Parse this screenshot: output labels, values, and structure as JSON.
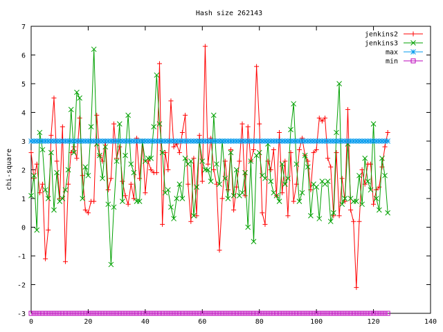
{
  "chart_data": {
    "type": "line",
    "title": "Hash size 262143",
    "xlabel": "",
    "ylabel": "chi-square",
    "xlim": [
      0,
      140
    ],
    "ylim": [
      -3,
      7
    ],
    "xticks": [
      0,
      20,
      40,
      60,
      80,
      100,
      120,
      140
    ],
    "yticks": [
      -3,
      -2,
      -1,
      0,
      1,
      2,
      3,
      4,
      5,
      6,
      7
    ],
    "grid": false,
    "legend_position": "top-right",
    "x": [
      0,
      1,
      2,
      3,
      4,
      5,
      6,
      7,
      8,
      9,
      10,
      11,
      12,
      13,
      14,
      15,
      16,
      17,
      18,
      19,
      20,
      21,
      22,
      23,
      24,
      25,
      26,
      27,
      28,
      29,
      30,
      31,
      32,
      33,
      34,
      35,
      36,
      37,
      38,
      39,
      40,
      41,
      42,
      43,
      44,
      45,
      46,
      47,
      48,
      49,
      50,
      51,
      52,
      53,
      54,
      55,
      56,
      57,
      58,
      59,
      60,
      61,
      62,
      63,
      64,
      65,
      66,
      67,
      68,
      69,
      70,
      71,
      72,
      73,
      74,
      75,
      76,
      77,
      78,
      79,
      80,
      81,
      82,
      83,
      84,
      85,
      86,
      87,
      88,
      89,
      90,
      91,
      92,
      93,
      94,
      95,
      96,
      97,
      98,
      99,
      100,
      101,
      102,
      103,
      104,
      105,
      106,
      107,
      108,
      109,
      110,
      111,
      112,
      113,
      114,
      115,
      116,
      117,
      118,
      119,
      120,
      121,
      122,
      123,
      124,
      125
    ],
    "series": [
      {
        "name": "jenkins2",
        "color": "#ff0000",
        "marker": "plus",
        "values": [
          2.6,
          1.7,
          2.2,
          1.2,
          1.5,
          -1.1,
          -0.1,
          3.2,
          4.5,
          2.3,
          1.0,
          3.5,
          -1.2,
          1.5,
          2.6,
          2.8,
          2.4,
          3.8,
          1.8,
          0.6,
          0.5,
          0.9,
          0.9,
          3.9,
          2.5,
          2.3,
          3.0,
          1.3,
          1.7,
          3.6,
          2.4,
          2.8,
          1.6,
          1.1,
          0.8,
          1.5,
          1.0,
          3.1,
          1.7,
          3.0,
          1.2,
          2.3,
          2.0,
          1.9,
          1.9,
          5.7,
          0.1,
          2.6,
          2.0,
          4.4,
          2.8,
          2.9,
          2.6,
          3.3,
          3.9,
          1.5,
          0.2,
          2.4,
          0.4,
          3.2,
          1.6,
          6.3,
          2.2,
          3.1,
          2.0,
          1.5,
          -0.8,
          1.0,
          2.3,
          1.3,
          2.7,
          0.6,
          1.4,
          2.3,
          3.6,
          1.1,
          3.5,
          2.3,
          2.7,
          5.6,
          3.6,
          0.5,
          0.1,
          2.3,
          2.0,
          2.7,
          1.1,
          3.3,
          1.2,
          2.3,
          0.4,
          2.6,
          0.9,
          1.5,
          2.7,
          3.1,
          2.5,
          2.3,
          1.3,
          2.6,
          2.7,
          3.8,
          3.7,
          3.8,
          2.4,
          2.1,
          0.4,
          2.6,
          0.4,
          1.7,
          0.9,
          4.1,
          0.6,
          0.2,
          -2.1,
          0.2,
          2.0,
          1.5,
          2.2,
          2.2,
          0.8,
          1.3,
          1.4,
          2.1,
          2.8,
          3.3
        ]
      },
      {
        "name": "jenkins3",
        "color": "#00a000",
        "marker": "x",
        "values": [
          1.1,
          1.8,
          -0.1,
          3.3,
          2.7,
          1.3,
          1.0,
          2.6,
          0.6,
          1.9,
          0.9,
          1.0,
          1.3,
          2.0,
          4.1,
          2.6,
          4.7,
          4.5,
          1.0,
          2.1,
          1.8,
          3.5,
          6.2,
          2.9,
          2.5,
          1.7,
          2.8,
          0.8,
          -1.3,
          0.7,
          2.3,
          3.6,
          0.9,
          2.5,
          3.9,
          2.2,
          1.9,
          0.9,
          0.9,
          3.0,
          2.3,
          2.4,
          2.4,
          3.5,
          5.3,
          3.6,
          2.6,
          1.2,
          1.3,
          0.7,
          0.3,
          1.0,
          1.5,
          1.0,
          2.4,
          2.2,
          2.3,
          0.4,
          1.4,
          3.0,
          2.3,
          2.0,
          2.0,
          1.6,
          3.9,
          2.2,
          1.5,
          3.0,
          1.7,
          1.0,
          2.6,
          1.1,
          2.0,
          1.1,
          1.2,
          1.9,
          0.0,
          2.3,
          -0.5,
          2.5,
          2.6,
          1.8,
          1.7,
          2.9,
          1.6,
          1.2,
          1.1,
          0.9,
          2.2,
          1.5,
          1.7,
          3.4,
          4.3,
          2.2,
          0.9,
          1.2,
          2.5,
          2.1,
          0.4,
          1.5,
          1.4,
          0.3,
          1.6,
          1.5,
          1.6,
          0.2,
          0.5,
          3.3,
          5.0,
          0.8,
          1.0,
          2.9,
          1.0,
          0.9,
          0.9,
          1.8,
          0.8,
          2.4,
          1.6,
          1.3,
          3.6,
          1.0,
          0.6,
          2.4,
          1.8,
          0.5
        ]
      },
      {
        "name": "max",
        "color": "#0099ee",
        "marker": "star",
        "values": [
          3,
          3,
          3,
          3,
          3,
          3,
          3,
          3,
          3,
          3,
          3,
          3,
          3,
          3,
          3,
          3,
          3,
          3,
          3,
          3,
          3,
          3,
          3,
          3,
          3,
          3,
          3,
          3,
          3,
          3,
          3,
          3,
          3,
          3,
          3,
          3,
          3,
          3,
          3,
          3,
          3,
          3,
          3,
          3,
          3,
          3,
          3,
          3,
          3,
          3,
          3,
          3,
          3,
          3,
          3,
          3,
          3,
          3,
          3,
          3,
          3,
          3,
          3,
          3,
          3,
          3,
          3,
          3,
          3,
          3,
          3,
          3,
          3,
          3,
          3,
          3,
          3,
          3,
          3,
          3,
          3,
          3,
          3,
          3,
          3,
          3,
          3,
          3,
          3,
          3,
          3,
          3,
          3,
          3,
          3,
          3,
          3,
          3,
          3,
          3,
          3,
          3,
          3,
          3,
          3,
          3,
          3,
          3,
          3,
          3,
          3,
          3,
          3,
          3,
          3,
          3,
          3,
          3,
          3,
          3,
          3,
          3,
          3,
          3,
          3,
          3
        ]
      },
      {
        "name": "min",
        "color": "#bb00bb",
        "marker": "square",
        "values": [
          -3,
          -3,
          -3,
          -3,
          -3,
          -3,
          -3,
          -3,
          -3,
          -3,
          -3,
          -3,
          -3,
          -3,
          -3,
          -3,
          -3,
          -3,
          -3,
          -3,
          -3,
          -3,
          -3,
          -3,
          -3,
          -3,
          -3,
          -3,
          -3,
          -3,
          -3,
          -3,
          -3,
          -3,
          -3,
          -3,
          -3,
          -3,
          -3,
          -3,
          -3,
          -3,
          -3,
          -3,
          -3,
          -3,
          -3,
          -3,
          -3,
          -3,
          -3,
          -3,
          -3,
          -3,
          -3,
          -3,
          -3,
          -3,
          -3,
          -3,
          -3,
          -3,
          -3,
          -3,
          -3,
          -3,
          -3,
          -3,
          -3,
          -3,
          -3,
          -3,
          -3,
          -3,
          -3,
          -3,
          -3,
          -3,
          -3,
          -3,
          -3,
          -3,
          -3,
          -3,
          -3,
          -3,
          -3,
          -3,
          -3,
          -3,
          -3,
          -3,
          -3,
          -3,
          -3,
          -3,
          -3,
          -3,
          -3,
          -3,
          -3,
          -3,
          -3,
          -3,
          -3,
          -3,
          -3,
          -3,
          -3,
          -3,
          -3,
          -3,
          -3,
          -3,
          -3,
          -3,
          -3,
          -3,
          -3,
          -3,
          -3,
          -3,
          -3,
          -3,
          -3,
          -3
        ]
      }
    ]
  }
}
